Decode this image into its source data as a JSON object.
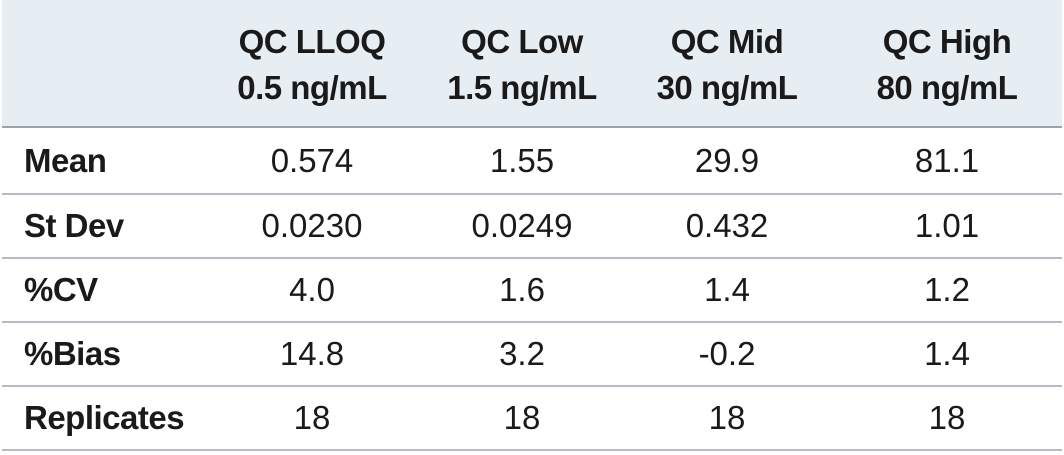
{
  "table": {
    "columns": [
      {
        "line1": "QC LLOQ",
        "line2": "0.5 ng/mL"
      },
      {
        "line1": "QC Low",
        "line2": "1.5 ng/mL"
      },
      {
        "line1": "QC Mid",
        "line2": "30 ng/mL"
      },
      {
        "line1": "QC High",
        "line2": "80 ng/mL"
      }
    ],
    "rows": [
      {
        "label": "Mean",
        "cells": [
          "0.574",
          "1.55",
          "29.9",
          "81.1"
        ]
      },
      {
        "label": "St Dev",
        "cells": [
          "0.0230",
          "0.0249",
          "0.432",
          "1.01"
        ]
      },
      {
        "label": "%CV",
        "cells": [
          "4.0",
          "1.6",
          "1.4",
          "1.2"
        ]
      },
      {
        "label": "%Bias",
        "cells": [
          "14.8",
          "3.2",
          "-0.2",
          "1.4"
        ]
      },
      {
        "label": "Replicates",
        "cells": [
          "18",
          "18",
          "18",
          "18"
        ]
      }
    ]
  },
  "colors": {
    "header_bg": "#e6edf3",
    "text": "#1a1a1a",
    "rule": "#b5bcc3"
  }
}
